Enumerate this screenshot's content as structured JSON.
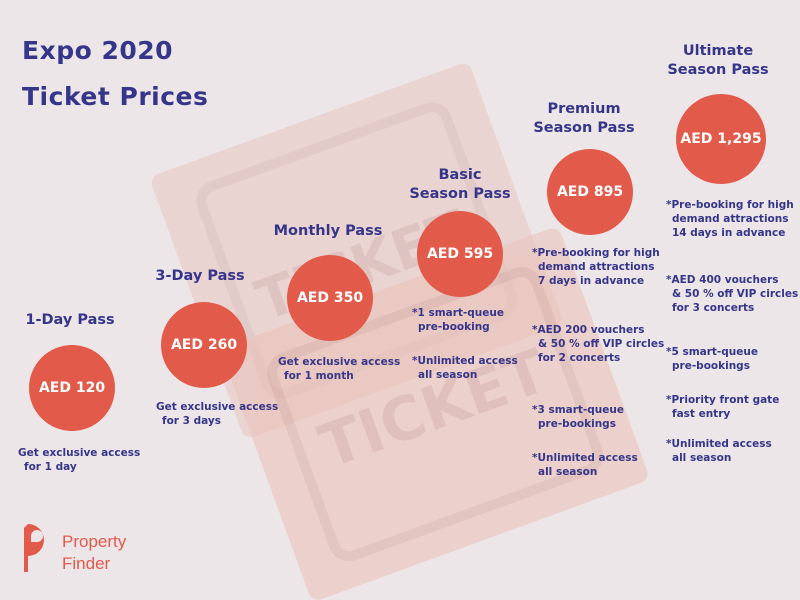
{
  "title": {
    "line1": "Expo 2020",
    "line2": "Ticket Prices"
  },
  "background": {
    "stamp_text": "TICKET"
  },
  "colors": {
    "background": "#ece6e8",
    "accent": "#e25a4a",
    "text": "#35358a",
    "ticket": "#e9c9c3"
  },
  "tiers": [
    {
      "name": [
        "1-Day Pass"
      ],
      "price": "AED 120",
      "notes": [
        [
          "Get exclusive access",
          "for 1 day"
        ]
      ]
    },
    {
      "name": [
        "3-Day Pass"
      ],
      "price": "AED 260",
      "notes": [
        [
          "Get exclusive access",
          "for 3 days"
        ]
      ]
    },
    {
      "name": [
        "Monthly Pass"
      ],
      "price": "AED 350",
      "notes": [
        [
          "Get exclusive access",
          "for 1 month"
        ]
      ]
    },
    {
      "name": [
        "Basic",
        "Season Pass"
      ],
      "price": "AED 595",
      "notes": [
        [
          "*1 smart-queue",
          "pre-booking"
        ],
        [
          "*Unlimited access",
          "all season"
        ]
      ]
    },
    {
      "name": [
        "Premium",
        "Season Pass"
      ],
      "price": "AED 895",
      "notes": [
        [
          "*Pre-booking for high",
          "demand attractions",
          "7 days in advance"
        ],
        [
          "*AED 200 vouchers",
          "& 50 % off VIP circles",
          "for 2 concerts"
        ],
        [
          "*3 smart-queue",
          "pre-bookings"
        ],
        [
          "*Unlimited access",
          "all season"
        ]
      ]
    },
    {
      "name": [
        "Ultimate",
        "Season Pass"
      ],
      "price": "AED 1,295",
      "notes": [
        [
          "*Pre-booking for high",
          "demand attractions",
          "14 days in advance"
        ],
        [
          "*AED 400 vouchers",
          "& 50 % off VIP circles",
          "for 3 concerts"
        ],
        [
          "*5 smart-queue",
          "pre-bookings"
        ],
        [
          "*Priority front gate",
          "fast entry"
        ],
        [
          "*Unlimited access",
          "all season"
        ]
      ]
    }
  ],
  "logo": {
    "line1": "Property",
    "line2": "Finder"
  }
}
